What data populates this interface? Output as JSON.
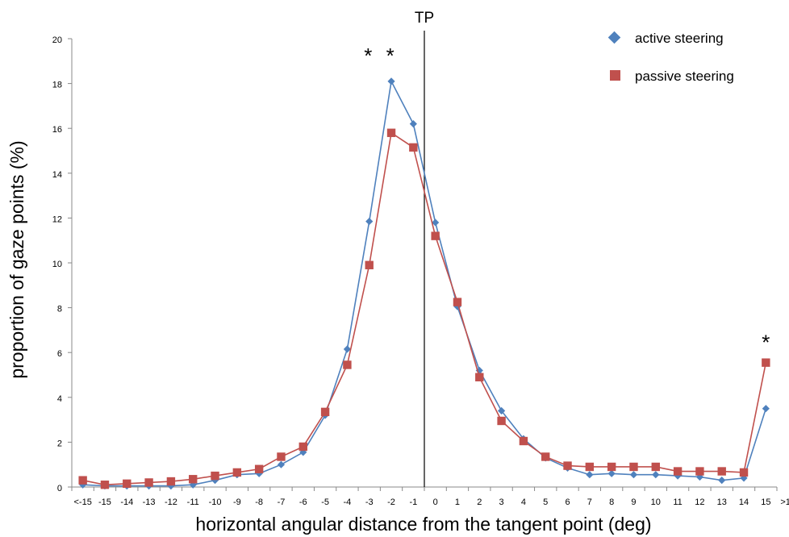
{
  "chart_data": {
    "type": "line",
    "title": "",
    "xlabel": "horizontal angular distance from the tangent point (deg)",
    "ylabel": "proportion of gaze points (%)",
    "ylim": [
      0,
      20
    ],
    "yticks": [
      "0",
      "2",
      "4",
      "6",
      "8",
      "10",
      "12",
      "14",
      "16",
      "18",
      "20"
    ],
    "xlim": [
      -16,
      16
    ],
    "xtick_labels": [
      "<-15",
      "-15",
      "-14",
      "-13",
      "-12",
      "-11",
      "-10",
      "-9",
      "-8",
      "-7",
      "-6",
      "-5",
      "-4",
      "-3",
      "-2",
      "-1",
      "0",
      "1",
      "2",
      "3",
      "4",
      "5",
      "6",
      "7",
      "8",
      "9",
      "10",
      "11",
      "12",
      "13",
      "14",
      "15",
      ">15"
    ],
    "x": [
      -15.5,
      -14.5,
      -13.5,
      -12.5,
      -11.5,
      -10.5,
      -9.5,
      -8.5,
      -7.5,
      -6.5,
      -5.5,
      -4.5,
      -3.5,
      -2.5,
      -1.5,
      -0.5,
      0.5,
      1.5,
      2.5,
      3.5,
      4.5,
      5.5,
      6.5,
      7.5,
      8.5,
      9.5,
      10.5,
      11.5,
      12.5,
      13.5,
      14.5,
      15.5
    ],
    "series": [
      {
        "name": "active steering",
        "color": "#4f81bd",
        "marker": "diamond",
        "values": [
          0.1,
          0.05,
          0.05,
          0.05,
          0.05,
          0.1,
          0.3,
          0.55,
          0.6,
          1.0,
          1.55,
          3.2,
          6.15,
          11.85,
          18.1,
          16.2,
          11.8,
          8.05,
          5.2,
          3.4,
          2.15,
          1.3,
          0.85,
          0.55,
          0.6,
          0.55,
          0.55,
          0.5,
          0.45,
          0.3,
          0.4,
          3.5
        ]
      },
      {
        "name": "passive steering",
        "color": "#c0504d",
        "marker": "square",
        "values": [
          0.3,
          0.1,
          0.15,
          0.2,
          0.25,
          0.35,
          0.5,
          0.65,
          0.8,
          1.35,
          1.8,
          3.35,
          5.45,
          9.9,
          15.8,
          15.15,
          11.2,
          8.25,
          4.9,
          2.95,
          2.05,
          1.35,
          0.95,
          0.9,
          0.9,
          0.9,
          0.9,
          0.7,
          0.7,
          0.7,
          0.65,
          5.55
        ]
      }
    ],
    "reference_line": {
      "x": 0,
      "label": "TP"
    },
    "annotations": [
      {
        "text": "*",
        "x": -2.55,
        "y": 19.5
      },
      {
        "text": "*",
        "x": -1.55,
        "y": 19.5
      },
      {
        "text": "*",
        "x": 15.5,
        "y": 6.7
      }
    ],
    "legend": "top-right",
    "grid": false
  }
}
